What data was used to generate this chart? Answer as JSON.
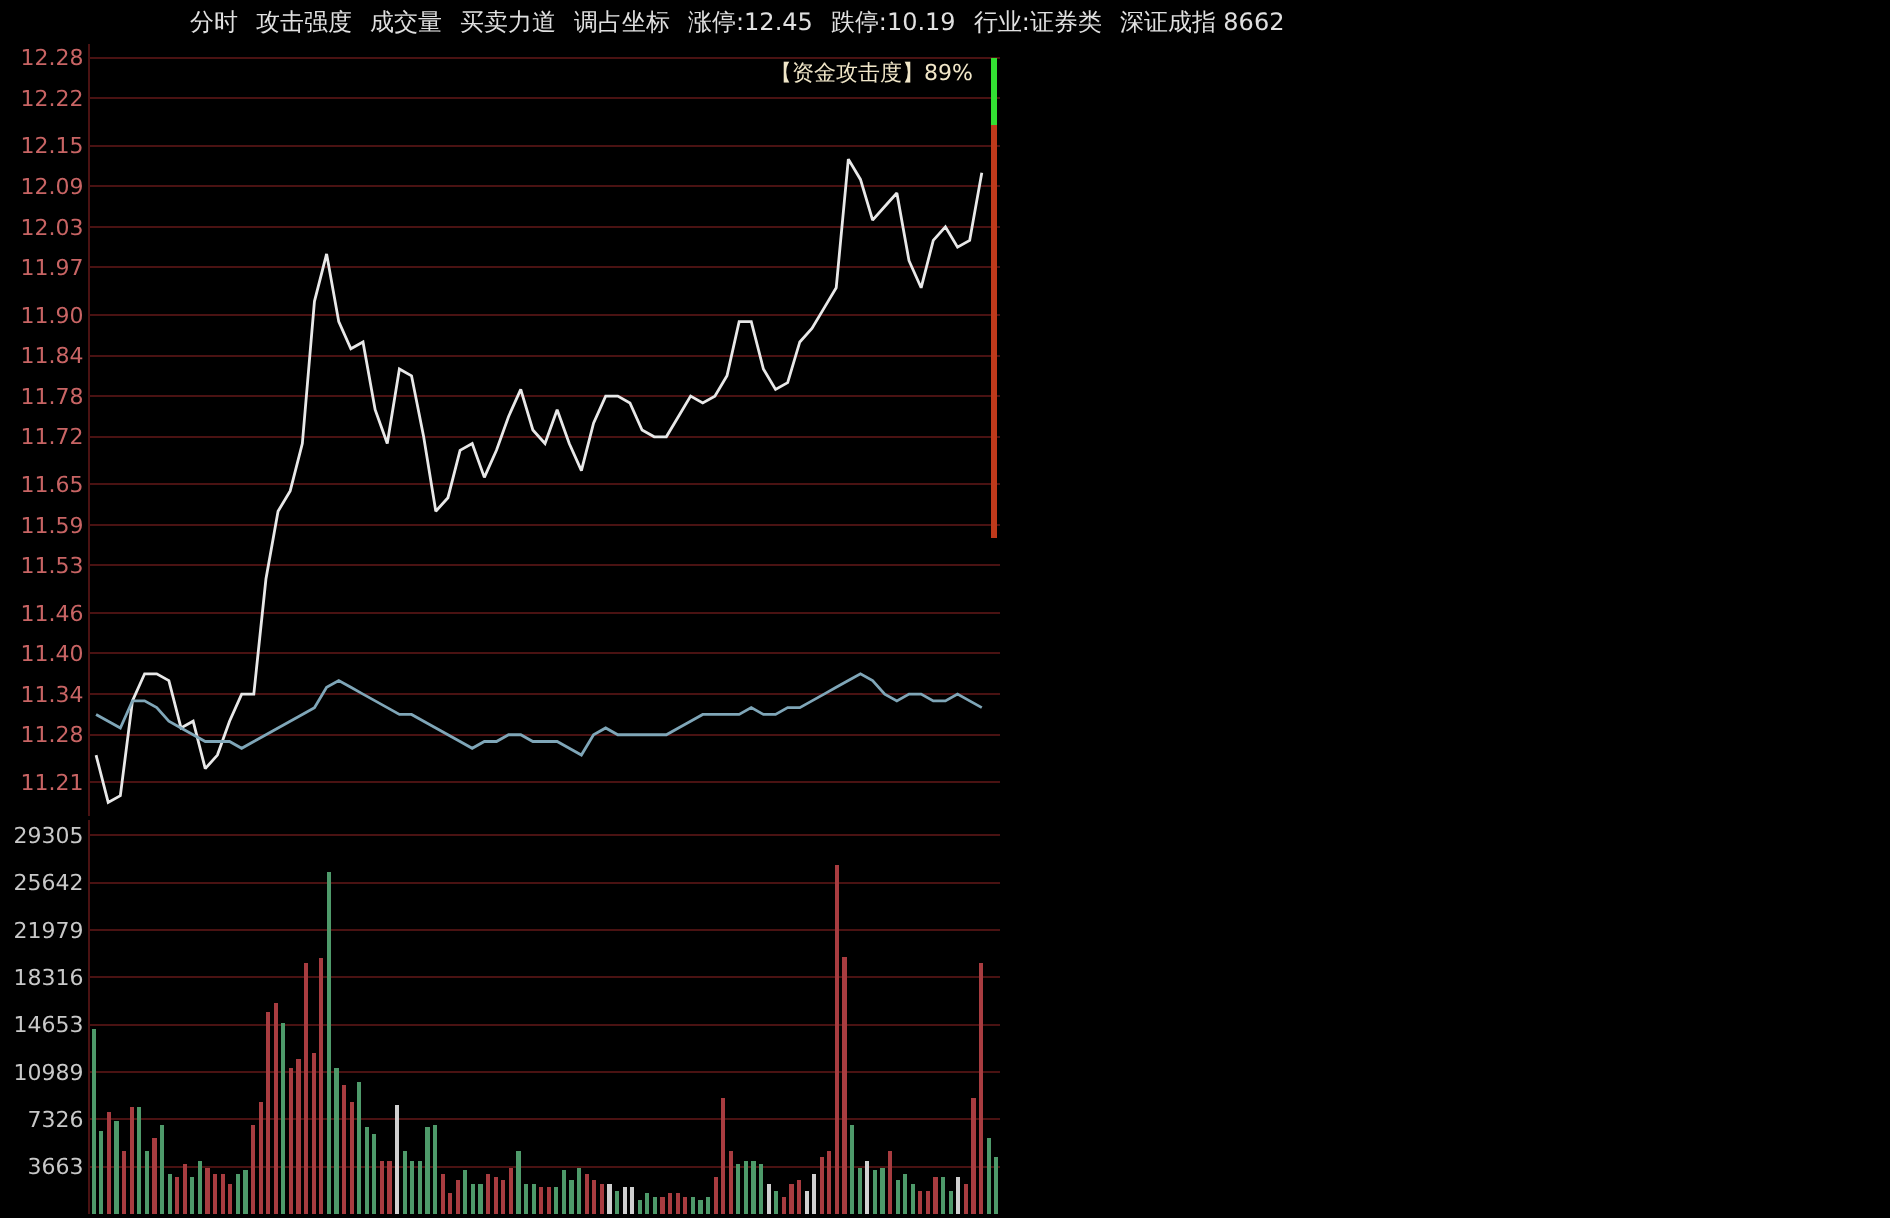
{
  "chart_data": [
    {
      "type": "line",
      "annotations": [
        "分时",
        "攻击强度",
        "成交量",
        "买卖力道",
        "调占坐标",
        "涨停:12.45",
        "跌停:10.19",
        "行业:证券类",
        "深证成指 8662",
        "【资金攻击度】89%"
      ],
      "categories": [
        null,
        null,
        null,
        null,
        null,
        null,
        null,
        null,
        null,
        null,
        null,
        null,
        null,
        null,
        null,
        null,
        null,
        null,
        null,
        null,
        null,
        null,
        null,
        null,
        null,
        null,
        null,
        null,
        null,
        null,
        null,
        null,
        null,
        null,
        null,
        null,
        null,
        null,
        null,
        null,
        null,
        null,
        null,
        null,
        null,
        null,
        null,
        null,
        null,
        null,
        null,
        null,
        null,
        null,
        null,
        null,
        null,
        null,
        null,
        null,
        null,
        null,
        null,
        null,
        null,
        null,
        null,
        null,
        null,
        null,
        null,
        null,
        null,
        null,
        null
      ],
      "series": [
        {
          "color": "#e8e8e8",
          "values": [
            11.25,
            11.18,
            11.19,
            11.33,
            11.37,
            11.37,
            11.36,
            11.29,
            11.3,
            11.23,
            11.25,
            11.3,
            11.34,
            11.34,
            11.51,
            11.61,
            11.64,
            11.71,
            11.92,
            11.99,
            11.89,
            11.85,
            11.86,
            11.76,
            11.71,
            11.82,
            11.81,
            11.72,
            11.61,
            11.63,
            11.7,
            11.71,
            11.66,
            11.7,
            11.75,
            11.79,
            11.73,
            11.71,
            11.76,
            11.71,
            11.67,
            11.74,
            11.78,
            11.78,
            11.77,
            11.73,
            11.72,
            11.72,
            11.75,
            11.78,
            11.77,
            11.78,
            11.81,
            11.89,
            11.89,
            11.82,
            11.79,
            11.8,
            11.86,
            11.88,
            11.91,
            11.94,
            12.13,
            12.1,
            12.04,
            12.06,
            12.08,
            11.98,
            11.94,
            12.01,
            12.03,
            12.0,
            12.01,
            12.11,
            null
          ]
        },
        {
          "color": "#7fa6b8",
          "values": [
            11.31,
            11.3,
            11.29,
            11.33,
            11.33,
            11.32,
            11.3,
            11.29,
            11.28,
            11.27,
            11.27,
            11.27,
            11.26,
            11.27,
            11.28,
            11.29,
            11.3,
            11.31,
            11.32,
            11.35,
            11.36,
            11.35,
            11.34,
            11.33,
            11.32,
            11.31,
            11.31,
            11.3,
            11.29,
            11.28,
            11.27,
            11.26,
            11.27,
            11.27,
            11.28,
            11.28,
            11.27,
            11.27,
            11.27,
            11.26,
            11.25,
            11.28,
            11.29,
            11.28,
            11.28,
            11.28,
            11.28,
            11.28,
            11.29,
            11.3,
            11.31,
            11.31,
            11.31,
            11.31,
            11.32,
            11.31,
            11.31,
            11.32,
            11.32,
            11.33,
            11.34,
            11.35,
            11.36,
            11.37,
            11.36,
            11.34,
            11.33,
            11.34,
            11.34,
            11.33,
            11.33,
            11.34,
            11.33,
            11.32,
            null
          ]
        },
        {
          "type": "bar",
          "color": "#33e033",
          "base": [
            null,
            null,
            null,
            null,
            null,
            null,
            null,
            null,
            null,
            null,
            null,
            null,
            null,
            null,
            null,
            null,
            null,
            null,
            null,
            null,
            null,
            null,
            null,
            null,
            null,
            null,
            null,
            null,
            null,
            null,
            null,
            null,
            null,
            null,
            null,
            null,
            null,
            null,
            null,
            null,
            null,
            null,
            null,
            null,
            null,
            null,
            null,
            null,
            null,
            null,
            null,
            null,
            null,
            null,
            null,
            null,
            null,
            null,
            null,
            null,
            null,
            null,
            null,
            null,
            null,
            null,
            null,
            null,
            null,
            null,
            null,
            null,
            null,
            null,
            12.18
          ],
          "values": [
            null,
            null,
            null,
            null,
            null,
            null,
            null,
            null,
            null,
            null,
            null,
            null,
            null,
            null,
            null,
            null,
            null,
            null,
            null,
            null,
            null,
            null,
            null,
            null,
            null,
            null,
            null,
            null,
            null,
            null,
            null,
            null,
            null,
            null,
            null,
            null,
            null,
            null,
            null,
            null,
            null,
            null,
            null,
            null,
            null,
            null,
            null,
            null,
            null,
            null,
            null,
            null,
            null,
            null,
            null,
            null,
            null,
            null,
            null,
            null,
            null,
            null,
            null,
            null,
            null,
            null,
            null,
            null,
            null,
            null,
            null,
            null,
            null,
            null,
            0.1
          ]
        },
        {
          "type": "bar",
          "color": "#c0391b",
          "base": [
            null,
            null,
            null,
            null,
            null,
            null,
            null,
            null,
            null,
            null,
            null,
            null,
            null,
            null,
            null,
            null,
            null,
            null,
            null,
            null,
            null,
            null,
            null,
            null,
            null,
            null,
            null,
            null,
            null,
            null,
            null,
            null,
            null,
            null,
            null,
            null,
            null,
            null,
            null,
            null,
            null,
            null,
            null,
            null,
            null,
            null,
            null,
            null,
            null,
            null,
            null,
            null,
            null,
            null,
            null,
            null,
            null,
            null,
            null,
            null,
            null,
            null,
            null,
            null,
            null,
            null,
            null,
            null,
            null,
            null,
            null,
            null,
            null,
            null,
            11.57
          ],
          "values": [
            null,
            null,
            null,
            null,
            null,
            null,
            null,
            null,
            null,
            null,
            null,
            null,
            null,
            null,
            null,
            null,
            null,
            null,
            null,
            null,
            null,
            null,
            null,
            null,
            null,
            null,
            null,
            null,
            null,
            null,
            null,
            null,
            null,
            null,
            null,
            null,
            null,
            null,
            null,
            null,
            null,
            null,
            null,
            null,
            null,
            null,
            null,
            null,
            null,
            null,
            null,
            null,
            null,
            null,
            null,
            null,
            null,
            null,
            null,
            null,
            null,
            null,
            null,
            null,
            null,
            null,
            null,
            null,
            null,
            null,
            null,
            null,
            null,
            null,
            0.61
          ]
        }
      ],
      "ylim": [
        11.16,
        12.3
      ],
      "yticks": [
        11.21,
        11.28,
        11.34,
        {
          "value": 11.4,
          "label": "11.40"
        },
        11.46,
        11.53,
        11.59,
        11.65,
        11.72,
        11.78,
        11.84,
        {
          "value": 11.9,
          "label": "11.90"
        },
        11.97,
        12.03,
        12.09,
        12.15,
        12.22,
        12.28
      ],
      "grid": "y",
      "tick_labels": "y"
    },
    {
      "type": "bar",
      "categories": [
        null,
        null,
        null,
        null,
        null,
        null,
        null,
        null,
        null,
        null,
        null,
        null,
        null,
        null,
        null,
        null,
        null,
        null,
        null,
        null,
        null,
        null,
        null,
        null,
        null,
        null,
        null,
        null,
        null,
        null,
        null,
        null,
        null,
        null,
        null,
        null,
        null,
        null,
        null,
        null,
        null,
        null,
        null,
        null,
        null,
        null,
        null,
        null,
        null,
        null,
        null,
        null,
        null,
        null,
        null,
        null,
        null,
        null,
        null,
        null,
        null,
        null,
        null,
        null,
        null,
        null,
        null,
        null,
        null,
        null,
        null,
        null,
        null,
        null,
        null,
        null,
        null,
        null,
        null,
        null,
        null,
        null,
        null,
        null,
        null,
        null,
        null,
        null,
        null,
        null,
        null,
        null,
        null,
        null,
        null,
        null,
        null,
        null,
        null,
        null,
        null,
        null,
        null,
        null,
        null,
        null,
        null,
        null,
        null,
        null,
        null,
        null,
        null,
        null,
        null,
        null,
        null,
        null,
        null,
        null
      ],
      "values": [
        14300,
        6400,
        7900,
        7200,
        4900,
        8300,
        8300,
        4900,
        5900,
        6900,
        3100,
        2900,
        3900,
        2900,
        4100,
        3600,
        3100,
        3100,
        2300,
        3100,
        3400,
        6900,
        8700,
        15600,
        16300,
        14800,
        11300,
        12000,
        19400,
        12500,
        19800,
        26500,
        11300,
        10000,
        8700,
        10200,
        6700,
        6200,
        4100,
        4100,
        8400,
        4900,
        4100,
        4100,
        6700,
        6900,
        3100,
        1600,
        2600,
        3400,
        2300,
        2300,
        3100,
        2900,
        2600,
        3600,
        4900,
        2300,
        2300,
        2100,
        2100,
        2100,
        3400,
        2600,
        3600,
        3100,
        2600,
        2300,
        2300,
        1800,
        2100,
        2100,
        1100,
        1600,
        1300,
        1300,
        1600,
        1600,
        1300,
        1300,
        1100,
        1300,
        2900,
        9000,
        4900,
        3900,
        4100,
        4100,
        3900,
        2300,
        1800,
        1300,
        2300,
        2600,
        1800,
        3100,
        4400,
        4900,
        27000,
        19900,
        6900,
        3600,
        4100,
        3400,
        3600,
        4900,
        2600,
        3100,
        2300,
        1800,
        1800,
        2900,
        2900,
        1800,
        2900,
        2300,
        9000,
        19400,
        5900,
        4400
      ],
      "colors": [
        "#4e9a6a",
        "#4e9a6a",
        "#a83c40",
        "#4e9a6a",
        "#a83c40",
        "#a83c40",
        "#4e9a6a",
        "#4e9a6a",
        "#a83c40",
        "#4e9a6a",
        "#4e9a6a",
        "#a83c40",
        "#a83c40",
        "#4e9a6a",
        "#4e9a6a",
        "#a83c40",
        "#a83c40",
        "#a83c40",
        "#a83c40",
        "#4e9a6a",
        "#4e9a6a",
        "#a83c40",
        "#a83c40",
        "#a83c40",
        "#a83c40",
        "#4e9a6a",
        "#a83c40",
        "#a83c40",
        "#a83c40",
        "#a83c40",
        "#a83c40",
        "#4e9a6a",
        "#4e9a6a",
        "#a83c40",
        "#a83c40",
        "#4e9a6a",
        "#4e9a6a",
        "#4e9a6a",
        "#a83c40",
        "#a83c40",
        "#d0d0d0",
        "#4e9a6a",
        "#4e9a6a",
        "#4e9a6a",
        "#4e9a6a",
        "#4e9a6a",
        "#a83c40",
        "#a83c40",
        "#a83c40",
        "#4e9a6a",
        "#4e9a6a",
        "#4e9a6a",
        "#a83c40",
        "#a83c40",
        "#a83c40",
        "#a83c40",
        "#4e9a6a",
        "#4e9a6a",
        "#4e9a6a",
        "#a83c40",
        "#a83c40",
        "#4e9a6a",
        "#4e9a6a",
        "#4e9a6a",
        "#4e9a6a",
        "#a83c40",
        "#a83c40",
        "#a83c40",
        "#d0d0d0",
        "#4e9a6a",
        "#d0d0d0",
        "#d0d0d0",
        "#4e9a6a",
        "#4e9a6a",
        "#4e9a6a",
        "#a83c40",
        "#a83c40",
        "#a83c40",
        "#a83c40",
        "#4e9a6a",
        "#4e9a6a",
        "#4e9a6a",
        "#a83c40",
        "#a83c40",
        "#a83c40",
        "#4e9a6a",
        "#4e9a6a",
        "#4e9a6a",
        "#4e9a6a",
        "#d0d0d0",
        "#4e9a6a",
        "#a83c40",
        "#a83c40",
        "#a83c40",
        "#d0d0d0",
        "#d0d0d0",
        "#a83c40",
        "#a83c40",
        "#a83c40",
        "#a83c40",
        "#4e9a6a",
        "#4e9a6a",
        "#d0d0d0",
        "#4e9a6a",
        "#4e9a6a",
        "#a83c40",
        "#4e9a6a",
        "#4e9a6a",
        "#4e9a6a",
        "#a83c40",
        "#a83c40",
        "#a83c40",
        "#4e9a6a",
        "#4e9a6a",
        "#d0d0d0",
        "#a83c40",
        "#a83c40",
        "#a83c40",
        "#4e9a6a",
        "#4e9a6a"
      ],
      "ylim": [
        0,
        30500
      ],
      "yticks": [
        3663,
        7326,
        10989,
        14653,
        18316,
        21979,
        25642,
        29305
      ],
      "grid": "y",
      "tick_labels": "y"
    }
  ]
}
